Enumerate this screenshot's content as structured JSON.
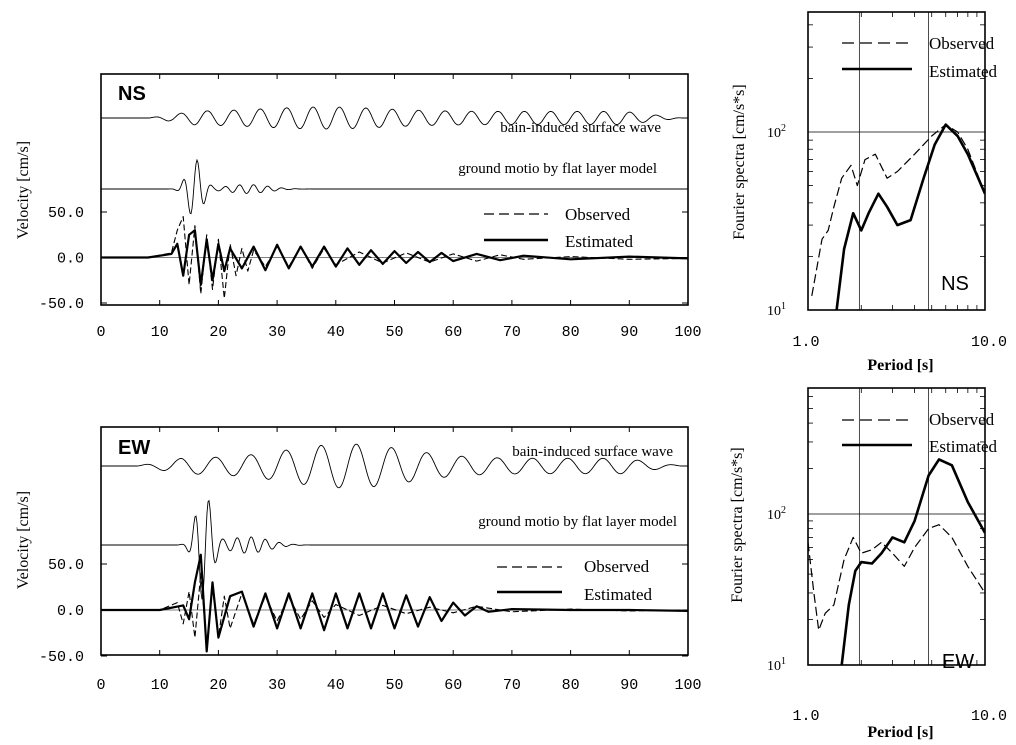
{
  "chart_data": [
    {
      "id": "ns-velocity",
      "type": "line",
      "panel_label": "NS",
      "xlabel": "",
      "ylabel": "Velocity [cm/s]",
      "xlim": [
        0,
        100
      ],
      "xticks": [
        "0",
        "10",
        "20",
        "30",
        "40",
        "50",
        "60",
        "70",
        "80",
        "90",
        "100"
      ],
      "yticks": [
        "50.0",
        "0.0",
        "-50.0"
      ],
      "trace_labels": {
        "surface": "bain-induced surface wave",
        "flat": "ground motio by flat layer model"
      },
      "legend": [
        "Observed",
        "Estimated"
      ],
      "series": [
        {
          "name": "Observed",
          "style": "dashed",
          "t": [
            0,
            8,
            12,
            13,
            14,
            15,
            16,
            17,
            18,
            19,
            20,
            21,
            22,
            23,
            24,
            25,
            26,
            28,
            30,
            32,
            34,
            36,
            38,
            40,
            44,
            48,
            52,
            56,
            60,
            64,
            68,
            72,
            80,
            90,
            100
          ],
          "v": [
            0,
            0,
            5,
            30,
            45,
            -30,
            35,
            -40,
            25,
            -35,
            20,
            -45,
            15,
            -20,
            10,
            -15,
            8,
            -10,
            12,
            -10,
            12,
            -12,
            10,
            -8,
            6,
            -6,
            5,
            -5,
            4,
            -4,
            3,
            -2,
            1,
            -2,
            -1
          ]
        },
        {
          "name": "Estimated",
          "style": "solid",
          "t": [
            0,
            8,
            12,
            13,
            14,
            15,
            16,
            17,
            18,
            19,
            20,
            21,
            22,
            24,
            26,
            28,
            30,
            32,
            34,
            36,
            38,
            40,
            42,
            44,
            46,
            48,
            50,
            52,
            54,
            56,
            58,
            60,
            64,
            68,
            72,
            80,
            90,
            100
          ],
          "v": [
            0,
            0,
            4,
            15,
            -20,
            25,
            30,
            -30,
            20,
            -25,
            15,
            -15,
            10,
            -12,
            12,
            -14,
            14,
            -12,
            12,
            -10,
            12,
            -10,
            10,
            -8,
            8,
            -7,
            7,
            -6,
            6,
            -5,
            5,
            -4,
            4,
            -3,
            2,
            -2,
            1,
            -1
          ]
        }
      ]
    },
    {
      "id": "ew-velocity",
      "type": "line",
      "panel_label": "EW",
      "xlabel": "",
      "ylabel": "Velocity [cm/s]",
      "xlim": [
        0,
        100
      ],
      "xticks": [
        "0",
        "10",
        "20",
        "30",
        "40",
        "50",
        "60",
        "70",
        "80",
        "90",
        "100"
      ],
      "yticks": [
        "50.0",
        "0.0",
        "-50.0"
      ],
      "trace_labels": {
        "surface": "bain-induced surface wave",
        "flat": "ground motio by flat layer model"
      },
      "legend": [
        "Observed",
        "Estimated"
      ],
      "series": [
        {
          "name": "Observed",
          "style": "dashed",
          "t": [
            0,
            10,
            13,
            14,
            15,
            16,
            17,
            18,
            19,
            20,
            21,
            22,
            24,
            26,
            28,
            30,
            32,
            34,
            36,
            38,
            40,
            44,
            48,
            52,
            56,
            60,
            64,
            70,
            80,
            90,
            100
          ],
          "v": [
            0,
            0,
            8,
            -15,
            20,
            -30,
            40,
            -40,
            25,
            -30,
            15,
            -20,
            18,
            -15,
            15,
            -12,
            14,
            -10,
            10,
            -8,
            6,
            -6,
            5,
            -4,
            3,
            -3,
            4,
            -2,
            1,
            -1,
            0
          ]
        },
        {
          "name": "Estimated",
          "style": "solid",
          "t": [
            0,
            10,
            14,
            15,
            16,
            17,
            18,
            19,
            20,
            22,
            24,
            26,
            28,
            30,
            32,
            34,
            36,
            38,
            40,
            42,
            44,
            46,
            48,
            50,
            52,
            54,
            56,
            58,
            60,
            62,
            64,
            66,
            70,
            80,
            90,
            100
          ],
          "v": [
            0,
            0,
            5,
            -10,
            30,
            60,
            -45,
            30,
            -30,
            15,
            20,
            -18,
            18,
            -20,
            18,
            -20,
            18,
            -22,
            18,
            -20,
            18,
            -20,
            18,
            -20,
            16,
            -18,
            14,
            -12,
            8,
            -6,
            4,
            -2,
            1,
            0,
            0,
            -1
          ]
        }
      ]
    },
    {
      "id": "ns-spectra",
      "type": "line",
      "panel_label": "NS",
      "xlabel": "Period [s]",
      "ylabel": "Fourier spectra [cm/s*s]",
      "xscale": "log",
      "yscale": "log",
      "xlim": [
        1.0,
        10.0
      ],
      "xticks": [
        "1.0",
        "10.0"
      ],
      "yticks": [
        "10",
        "10"
      ],
      "yticks_sup": [
        "1",
        "2"
      ],
      "legend": [
        "Observed",
        "Estimated"
      ],
      "series": [
        {
          "name": "Observed",
          "style": "dashed",
          "period": [
            1.05,
            1.2,
            1.3,
            1.4,
            1.55,
            1.75,
            1.9,
            2.1,
            2.4,
            2.8,
            3.2,
            4,
            5,
            6,
            7,
            8,
            10
          ],
          "amp": [
            12,
            25,
            28,
            38,
            55,
            65,
            50,
            70,
            75,
            55,
            60,
            75,
            95,
            110,
            100,
            80,
            45
          ]
        },
        {
          "name": "Estimated",
          "style": "solid",
          "period": [
            1.45,
            1.6,
            1.8,
            2.0,
            2.2,
            2.5,
            2.8,
            3.2,
            3.8,
            4.5,
            5.2,
            6,
            7,
            8,
            10
          ],
          "amp": [
            10,
            22,
            35,
            28,
            35,
            45,
            38,
            30,
            32,
            55,
            85,
            110,
            95,
            75,
            45
          ]
        }
      ]
    },
    {
      "id": "ew-spectra",
      "type": "line",
      "panel_label": "EW",
      "xlabel": "Period [s]",
      "ylabel": "Fourier spectra [cm/s*s]",
      "xscale": "log",
      "yscale": "log",
      "xlim": [
        1.0,
        10.0
      ],
      "xticks": [
        "1.0",
        "10.0"
      ],
      "yticks": [
        "10",
        "10"
      ],
      "yticks_sup": [
        "1",
        "2"
      ],
      "legend": [
        "Observed",
        "Estimated"
      ],
      "series": [
        {
          "name": "Observed",
          "style": "dashed",
          "period": [
            1.0,
            1.08,
            1.15,
            1.25,
            1.4,
            1.6,
            1.8,
            2.0,
            2.3,
            2.6,
            3.0,
            3.5,
            4.0,
            4.8,
            5.5,
            6.5,
            8,
            10
          ],
          "amp": [
            65,
            30,
            17,
            22,
            25,
            50,
            70,
            55,
            58,
            65,
            55,
            45,
            60,
            80,
            85,
            70,
            45,
            30
          ]
        },
        {
          "name": "Estimated",
          "style": "solid",
          "period": [
            1.55,
            1.7,
            1.85,
            2.0,
            2.3,
            2.6,
            3.0,
            3.5,
            4.0,
            4.8,
            5.5,
            6.5,
            8,
            10
          ],
          "amp": [
            10,
            25,
            42,
            48,
            47,
            55,
            70,
            65,
            90,
            180,
            230,
            210,
            120,
            75
          ]
        }
      ]
    }
  ]
}
